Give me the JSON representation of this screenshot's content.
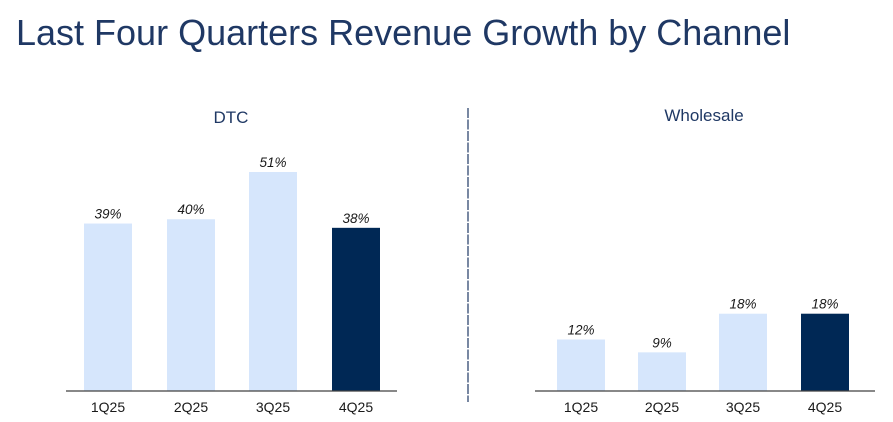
{
  "title": "Last Four Quarters Revenue Growth by Channel",
  "colors": {
    "title": "#1f3864",
    "bar_light": "#d6e6fc",
    "bar_highlight": "#002855",
    "axis": "#404040",
    "label": "#1a1a1a",
    "divider": "#1f3864"
  },
  "chart_data": [
    {
      "type": "bar",
      "title": "DTC",
      "categories": [
        "1Q25",
        "2Q25",
        "3Q25",
        "4Q25"
      ],
      "values": [
        39,
        40,
        51,
        38
      ],
      "data_labels": [
        "39%",
        "40%",
        "51%",
        "38%"
      ],
      "highlight_index": 3,
      "unit": "%",
      "xlabel": "",
      "ylabel": "",
      "ylim": [
        0,
        55
      ]
    },
    {
      "type": "bar",
      "title": "Wholesale",
      "categories": [
        "1Q25",
        "2Q25",
        "3Q25",
        "4Q25"
      ],
      "values": [
        12,
        9,
        18,
        18
      ],
      "data_labels": [
        "12%",
        "9%",
        "18%",
        "18%"
      ],
      "highlight_index": 3,
      "unit": "%",
      "xlabel": "",
      "ylabel": "",
      "ylim": [
        0,
        55
      ]
    }
  ]
}
